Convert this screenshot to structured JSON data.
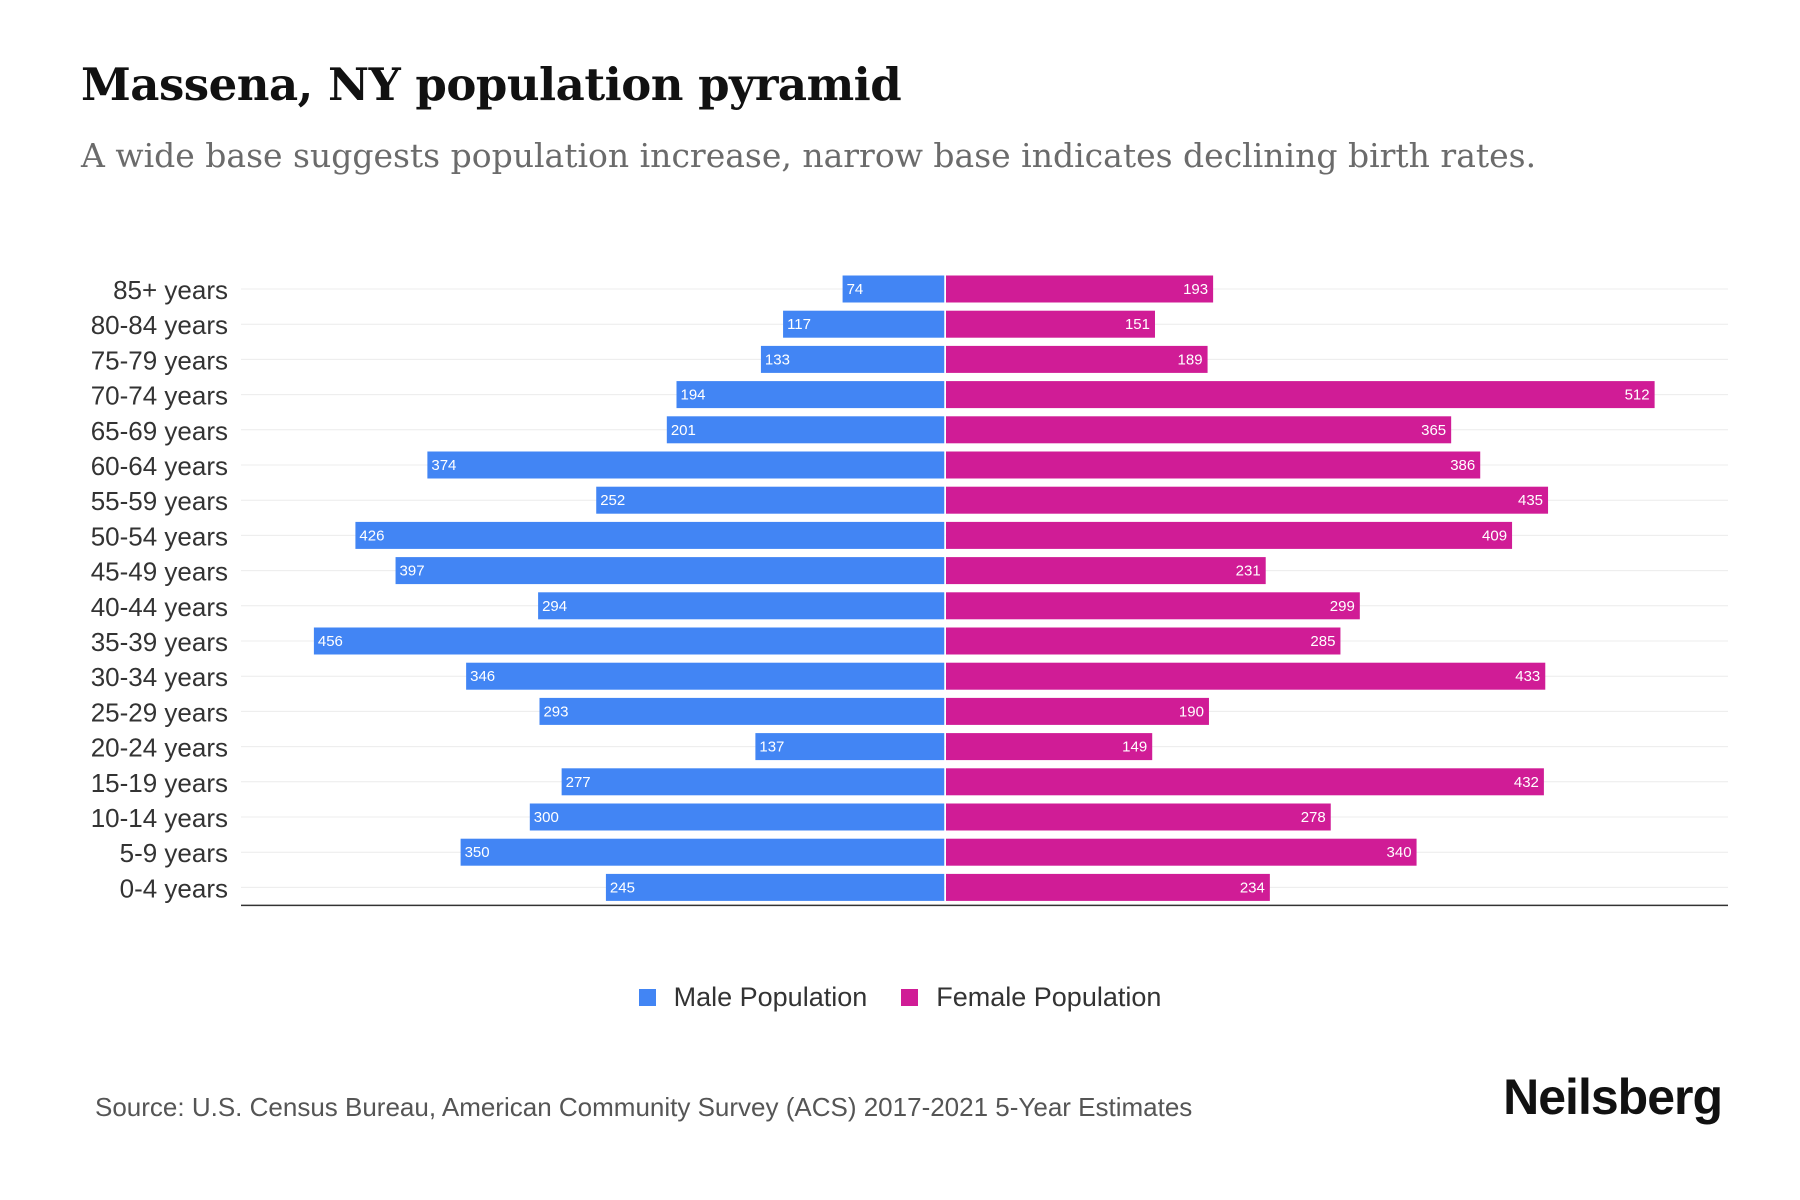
{
  "title": "Massena, NY population pyramid",
  "subtitle": "A wide base suggests population increase, narrow base indicates declining birth rates.",
  "source": "Source: U.S. Census Bureau, American Community Survey (ACS) 2017-2021 5-Year Estimates",
  "brand": "Neilsberg",
  "colors": {
    "male": "#4285f4",
    "female": "#d01c96",
    "axis": "#333333",
    "grid": "#ececec"
  },
  "legend": [
    {
      "label": "Male Population",
      "color": "#4285f4"
    },
    {
      "label": "Female Population",
      "color": "#d01c96"
    }
  ],
  "chart_data": {
    "type": "bar",
    "orientation": "horizontal-pyramid",
    "title": "Massena, NY population pyramid",
    "categories": [
      "85+ years",
      "80-84 years",
      "75-79 years",
      "70-74 years",
      "65-69 years",
      "60-64 years",
      "55-59 years",
      "50-54 years",
      "45-49 years",
      "40-44 years",
      "35-39 years",
      "30-34 years",
      "25-29 years",
      "20-24 years",
      "15-19 years",
      "10-14 years",
      "5-9 years",
      "0-4 years"
    ],
    "series": [
      {
        "name": "Male Population",
        "side": "left",
        "values": [
          74,
          117,
          133,
          194,
          201,
          374,
          252,
          426,
          397,
          294,
          456,
          346,
          293,
          137,
          277,
          300,
          350,
          245
        ]
      },
      {
        "name": "Female Population",
        "side": "right",
        "values": [
          193,
          151,
          189,
          512,
          365,
          386,
          435,
          409,
          231,
          299,
          285,
          433,
          190,
          149,
          432,
          278,
          340,
          234
        ]
      }
    ],
    "xlim": [
      -512,
      512
    ],
    "grid": true,
    "legend_position": "bottom-center"
  }
}
